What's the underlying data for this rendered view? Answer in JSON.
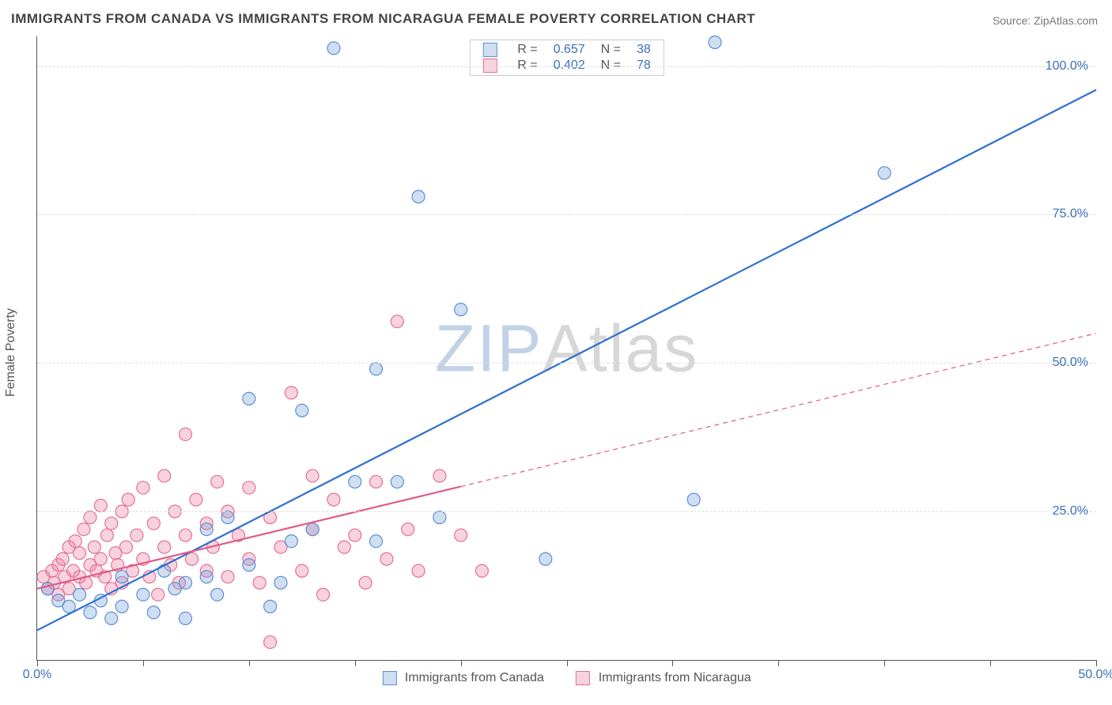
{
  "title": "IMMIGRANTS FROM CANADA VS IMMIGRANTS FROM NICARAGUA FEMALE POVERTY CORRELATION CHART",
  "source_label": "Source: ",
  "source_value": "ZipAtlas.com",
  "ylabel": "Female Poverty",
  "watermark_a": "ZIP",
  "watermark_b": "Atlas",
  "chart": {
    "type": "scatter",
    "xlim": [
      0,
      50
    ],
    "ylim": [
      0,
      105
    ],
    "x_ticks": [
      0,
      5,
      10,
      15,
      20,
      25,
      30,
      35,
      40,
      45,
      50
    ],
    "x_tick_labels": {
      "0": "0.0%",
      "50": "50.0%"
    },
    "y_gridlines": [
      25,
      50,
      75,
      100
    ],
    "y_tick_labels": {
      "25": "25.0%",
      "50": "50.0%",
      "75": "75.0%",
      "100": "100.0%"
    },
    "background_color": "#ffffff",
    "grid_color": "#dddddd",
    "axis_color": "#555555",
    "tick_label_color": "#3b6fb6",
    "marker_radius": 8,
    "marker_stroke_width": 1.2,
    "line_width": 2.2,
    "series": [
      {
        "id": "canada",
        "label": "Immigrants from Canada",
        "fill": "rgba(120,160,215,0.35)",
        "stroke": "#5b8fd6",
        "line_color": "#2f6fd0",
        "R": "0.657",
        "N": "38",
        "regression": {
          "x1": 0,
          "y1": 5,
          "x2": 50,
          "y2": 96,
          "dashed_from": null
        },
        "points": [
          [
            0.5,
            12
          ],
          [
            1,
            10
          ],
          [
            1.5,
            9
          ],
          [
            2,
            11
          ],
          [
            2.5,
            8
          ],
          [
            3,
            10
          ],
          [
            3.5,
            7
          ],
          [
            4,
            14
          ],
          [
            4,
            9
          ],
          [
            5,
            11
          ],
          [
            5.5,
            8
          ],
          [
            6,
            15
          ],
          [
            6.5,
            12
          ],
          [
            7,
            13
          ],
          [
            7,
            7
          ],
          [
            8,
            14
          ],
          [
            8,
            22
          ],
          [
            8.5,
            11
          ],
          [
            9,
            24
          ],
          [
            10,
            16
          ],
          [
            10,
            44
          ],
          [
            11,
            9
          ],
          [
            11.5,
            13
          ],
          [
            12,
            20
          ],
          [
            12.5,
            42
          ],
          [
            13,
            22
          ],
          [
            14,
            103
          ],
          [
            15,
            30
          ],
          [
            16,
            20
          ],
          [
            16,
            49
          ],
          [
            17,
            30
          ],
          [
            18,
            78
          ],
          [
            19,
            24
          ],
          [
            20,
            59
          ],
          [
            24,
            17
          ],
          [
            31,
            27
          ],
          [
            32,
            104
          ],
          [
            40,
            82
          ]
        ]
      },
      {
        "id": "nicaragua",
        "label": "Immigrants from Nicaragua",
        "fill": "rgba(235,130,160,0.35)",
        "stroke": "#e46f95",
        "line_color": "#e05a85",
        "R": "0.402",
        "N": "78",
        "regression": {
          "x1": 0,
          "y1": 12,
          "x2": 50,
          "y2": 55,
          "dashed_from": 20
        },
        "points": [
          [
            0.3,
            14
          ],
          [
            0.5,
            12
          ],
          [
            0.7,
            15
          ],
          [
            0.8,
            13
          ],
          [
            1,
            16
          ],
          [
            1,
            11
          ],
          [
            1.2,
            17
          ],
          [
            1.3,
            14
          ],
          [
            1.5,
            19
          ],
          [
            1.5,
            12
          ],
          [
            1.7,
            15
          ],
          [
            1.8,
            20
          ],
          [
            2,
            14
          ],
          [
            2,
            18
          ],
          [
            2.2,
            22
          ],
          [
            2.3,
            13
          ],
          [
            2.5,
            24
          ],
          [
            2.5,
            16
          ],
          [
            2.7,
            19
          ],
          [
            2.8,
            15
          ],
          [
            3,
            26
          ],
          [
            3,
            17
          ],
          [
            3.2,
            14
          ],
          [
            3.3,
            21
          ],
          [
            3.5,
            23
          ],
          [
            3.5,
            12
          ],
          [
            3.7,
            18
          ],
          [
            3.8,
            16
          ],
          [
            4,
            25
          ],
          [
            4,
            13
          ],
          [
            4.2,
            19
          ],
          [
            4.3,
            27
          ],
          [
            4.5,
            15
          ],
          [
            4.7,
            21
          ],
          [
            5,
            17
          ],
          [
            5,
            29
          ],
          [
            5.3,
            14
          ],
          [
            5.5,
            23
          ],
          [
            5.7,
            11
          ],
          [
            6,
            19
          ],
          [
            6,
            31
          ],
          [
            6.3,
            16
          ],
          [
            6.5,
            25
          ],
          [
            6.7,
            13
          ],
          [
            7,
            21
          ],
          [
            7,
            38
          ],
          [
            7.3,
            17
          ],
          [
            7.5,
            27
          ],
          [
            8,
            15
          ],
          [
            8,
            23
          ],
          [
            8.3,
            19
          ],
          [
            8.5,
            30
          ],
          [
            9,
            14
          ],
          [
            9,
            25
          ],
          [
            9.5,
            21
          ],
          [
            10,
            17
          ],
          [
            10,
            29
          ],
          [
            10.5,
            13
          ],
          [
            11,
            24
          ],
          [
            11,
            3
          ],
          [
            11.5,
            19
          ],
          [
            12,
            45
          ],
          [
            12.5,
            15
          ],
          [
            13,
            31
          ],
          [
            13,
            22
          ],
          [
            13.5,
            11
          ],
          [
            14,
            27
          ],
          [
            14.5,
            19
          ],
          [
            15,
            21
          ],
          [
            15.5,
            13
          ],
          [
            16,
            30
          ],
          [
            16.5,
            17
          ],
          [
            17,
            57
          ],
          [
            17.5,
            22
          ],
          [
            18,
            15
          ],
          [
            19,
            31
          ],
          [
            20,
            21
          ],
          [
            21,
            15
          ]
        ]
      }
    ]
  },
  "legend_top": {
    "r_label": "R =",
    "n_label": "N ="
  }
}
